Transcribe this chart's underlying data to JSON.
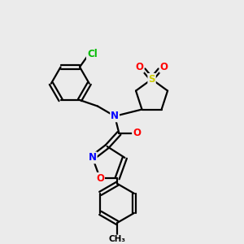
{
  "bg_color": "#ebebeb",
  "bond_color": "#000000",
  "bond_width": 1.6,
  "atom_colors": {
    "N": "#0000ff",
    "O": "#ff0000",
    "S": "#cccc00",
    "Cl": "#00bb00",
    "C": "#000000"
  },
  "font_size": 8.5,
  "figsize": [
    3.0,
    3.0
  ],
  "dpi": 100
}
